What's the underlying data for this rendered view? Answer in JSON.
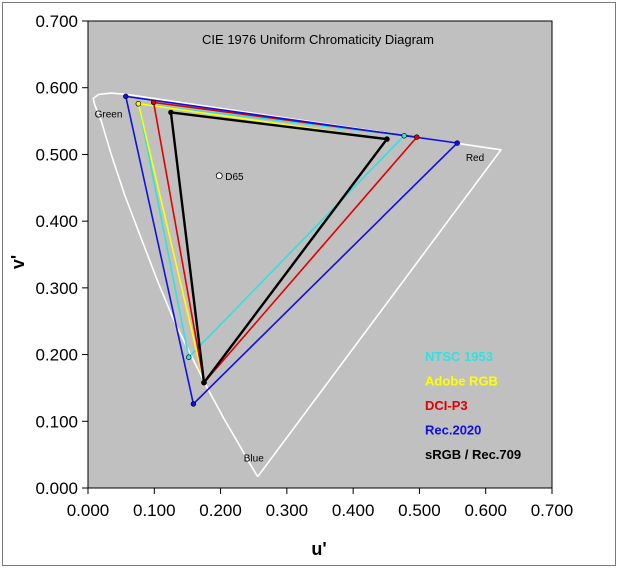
{
  "chart_data": {
    "type": "scatter",
    "title": "CIE 1976 Uniform Chromaticity Diagram",
    "xlabel": "u'",
    "ylabel": "v'",
    "xlim": [
      0.0,
      0.7
    ],
    "ylim": [
      0.0,
      0.7
    ],
    "x_ticks": [
      "0.000",
      "0.100",
      "0.200",
      "0.300",
      "0.400",
      "0.500",
      "0.600",
      "0.700"
    ],
    "y_ticks": [
      "0.000",
      "0.100",
      "0.200",
      "0.300",
      "0.400",
      "0.500",
      "0.600",
      "0.700"
    ],
    "grid": false,
    "plot_background": "#c0c0c0",
    "spectral_locus": {
      "color": "#ffffff",
      "points": [
        [
          0.256,
          0.017
        ],
        [
          0.245,
          0.035
        ],
        [
          0.228,
          0.065
        ],
        [
          0.205,
          0.104
        ],
        [
          0.18,
          0.15
        ],
        [
          0.155,
          0.2
        ],
        [
          0.13,
          0.25
        ],
        [
          0.105,
          0.31
        ],
        [
          0.08,
          0.375
        ],
        [
          0.055,
          0.44
        ],
        [
          0.035,
          0.5
        ],
        [
          0.02,
          0.55
        ],
        [
          0.01,
          0.575
        ],
        [
          0.008,
          0.584
        ],
        [
          0.016,
          0.59
        ],
        [
          0.035,
          0.592
        ],
        [
          0.058,
          0.59
        ],
        [
          0.623,
          0.507
        ],
        [
          0.256,
          0.017
        ]
      ]
    },
    "gamuts": [
      {
        "name": "NTSC 1953",
        "color": "#33e0e0",
        "red": [
          0.477,
          0.528
        ],
        "green": [
          0.076,
          0.576
        ],
        "blue": [
          0.152,
          0.196
        ]
      },
      {
        "name": "Adobe RGB",
        "color": "#ffff00",
        "red": [
          0.451,
          0.523
        ],
        "green": [
          0.076,
          0.576
        ],
        "blue": [
          0.175,
          0.158
        ]
      },
      {
        "name": "DCI-P3",
        "color": "#e00000",
        "red": [
          0.496,
          0.526
        ],
        "green": [
          0.099,
          0.578
        ],
        "blue": [
          0.175,
          0.158
        ]
      },
      {
        "name": "Rec.2020",
        "color": "#1010e0",
        "red": [
          0.557,
          0.517
        ],
        "green": [
          0.057,
          0.587
        ],
        "blue": [
          0.159,
          0.126
        ]
      },
      {
        "name": "sRGB / Rec.709",
        "color": "#000000",
        "red": [
          0.451,
          0.523
        ],
        "green": [
          0.125,
          0.563
        ],
        "blue": [
          0.175,
          0.158
        ]
      }
    ],
    "white_point": {
      "name": "D65",
      "u": 0.198,
      "v": 0.468
    },
    "annotations": [
      {
        "text": "Green",
        "u": 0.01,
        "v": 0.555
      },
      {
        "text": "Red",
        "u": 0.57,
        "v": 0.49
      },
      {
        "text": "Blue",
        "u": 0.235,
        "v": 0.04
      }
    ],
    "legend_position": "bottom-right"
  }
}
